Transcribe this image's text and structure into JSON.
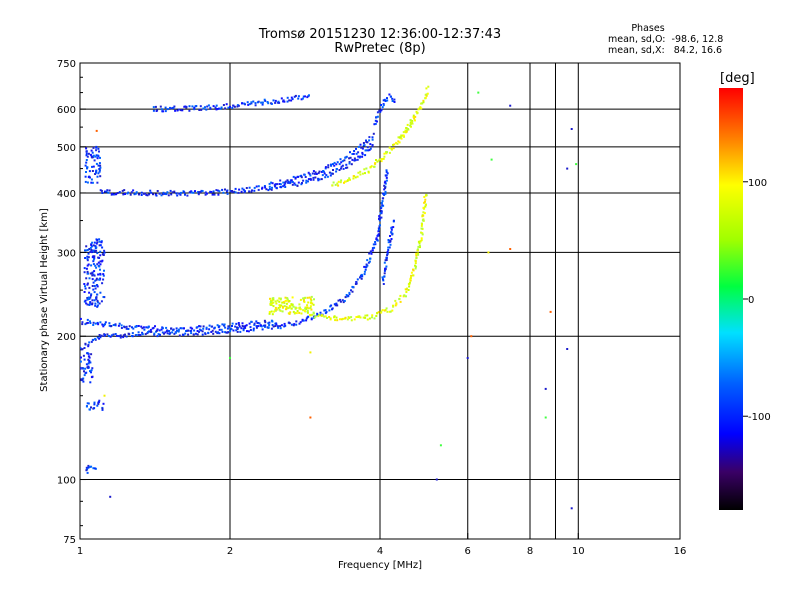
{
  "chart_data": {
    "type": "scatter",
    "title": "Tromsø 20151230 12:36:00-12:37:43",
    "subtitle": "RwPretec (8p)",
    "xlabel": "Frequency [MHz]",
    "ylabel": "Stationary phase Virtual Height [km]",
    "x_scale": "log",
    "y_scale": "log",
    "xlim": [
      1,
      16
    ],
    "ylim": [
      75,
      750
    ],
    "x_ticks": [
      {
        "v": 1,
        "label": "1"
      },
      {
        "v": 2,
        "label": "2"
      },
      {
        "v": 4,
        "label": "4"
      },
      {
        "v": 6,
        "label": "6"
      },
      {
        "v": 8,
        "label": "8"
      },
      {
        "v": 10,
        "label": "10"
      },
      {
        "v": 16,
        "label": "16"
      }
    ],
    "x_grid": [
      2,
      4,
      6,
      8,
      9,
      10
    ],
    "y_ticks": [
      {
        "v": 75,
        "label": "75"
      },
      {
        "v": 100,
        "label": "100"
      },
      {
        "v": 200,
        "label": "200"
      },
      {
        "v": 300,
        "label": "300"
      },
      {
        "v": 400,
        "label": "400"
      },
      {
        "v": 500,
        "label": "500"
      },
      {
        "v": 600,
        "label": "600"
      },
      {
        "v": 750,
        "label": "750"
      }
    ],
    "y_grid": [
      100,
      200,
      300,
      400,
      500,
      600
    ],
    "grid": true,
    "legend": {
      "title": "Phases",
      "line1": "mean, sd,O:  -98.6, 12.8",
      "line2": "mean, sd,X:   84.2, 16.6"
    },
    "colorbar": {
      "label": "[deg]",
      "range": [
        -180,
        180
      ],
      "ticks": [
        {
          "v": 100,
          "label": "100"
        },
        {
          "v": 0,
          "label": "0"
        },
        {
          "v": -100,
          "label": "-100"
        }
      ]
    },
    "series": [
      {
        "name": "O",
        "phase": -98.6,
        "traces": [
          {
            "f": [
              1.0,
              1.1,
              1.3,
              1.6,
              1.9,
              2.1,
              2.5,
              2.8,
              3.1,
              3.4,
              3.7,
              3.95,
              4.05,
              4.15
            ],
            "h": [
              188,
              200,
              202,
              203,
              204,
              206,
              210,
              215,
              225,
              240,
              270,
              320,
              380,
              450
            ]
          },
          {
            "f": [
              1.0,
              1.2,
              1.5,
              1.8,
              2.0,
              2.2,
              2.5
            ],
            "h": [
              215,
              210,
              207,
              208,
              210,
              212,
              214
            ]
          },
          {
            "f": [
              1.1,
              1.3,
              1.6,
              1.9,
              2.1,
              2.4,
              2.8,
              3.2,
              3.6,
              3.9
            ],
            "h": [
              402,
              400,
              399,
              401,
              405,
              410,
              420,
              440,
              470,
              510
            ]
          },
          {
            "f": [
              2.4,
              2.8,
              3.2,
              3.6,
              3.9
            ],
            "h": [
              415,
              432,
              455,
              490,
              530
            ]
          },
          {
            "f": [
              1.4,
              1.6,
              1.8,
              2.0,
              2.2,
              2.5,
              2.9
            ],
            "h": [
              600,
              601,
              604,
              610,
              616,
              625,
              640
            ]
          },
          {
            "f": [
              3.9,
              4.0,
              4.1,
              4.2,
              4.3
            ],
            "h": [
              560,
              600,
              630,
              640,
              620
            ]
          },
          {
            "f": [
              4.05,
              4.15,
              4.25
            ],
            "h": [
              260,
              300,
              350
            ]
          }
        ],
        "clusters": [
          {
            "f": [
              1.02,
              1.12
            ],
            "h": [
              230,
              320
            ]
          },
          {
            "f": [
              1.03,
              1.12
            ],
            "h": [
              140,
              147
            ]
          },
          {
            "f": [
              1.03,
              1.08
            ],
            "h": [
              103,
              108
            ]
          },
          {
            "f": [
              1.02,
              1.1
            ],
            "h": [
              420,
              500
            ]
          },
          {
            "f": [
              1.0,
              1.06
            ],
            "h": [
              160,
              185
            ]
          }
        ],
        "points": [
          {
            "f": 5.2,
            "h": 100
          },
          {
            "f": 6.0,
            "h": 180
          },
          {
            "f": 7.3,
            "h": 610
          },
          {
            "f": 8.6,
            "h": 155
          },
          {
            "f": 9.5,
            "h": 188
          },
          {
            "f": 9.7,
            "h": 545
          },
          {
            "f": 9.5,
            "h": 450
          },
          {
            "f": 9.7,
            "h": 87
          },
          {
            "f": 1.15,
            "h": 92
          }
        ]
      },
      {
        "name": "X",
        "phase": 84.2,
        "traces": [
          {
            "f": [
              2.4,
              2.7,
              3.0,
              3.3,
              3.6,
              3.9,
              4.2,
              4.5,
              4.7,
              4.85,
              4.95
            ],
            "h": [
              240,
              228,
              220,
              218,
              218,
              220,
              228,
              245,
              280,
              330,
              400
            ]
          },
          {
            "f": [
              3.2,
              3.5,
              3.8,
              4.1,
              4.4,
              4.7
            ],
            "h": [
              415,
              430,
              448,
              480,
              520,
              570
            ]
          },
          {
            "f": [
              4.4,
              4.6,
              4.8,
              4.95,
              5.0
            ],
            "h": [
              520,
              560,
              600,
              640,
              665
            ]
          }
        ],
        "clusters": [
          {
            "f": [
              2.4,
              2.95
            ],
            "h": [
              222,
              242
            ]
          }
        ],
        "points": [
          {
            "f": 1.08,
            "h": 540
          },
          {
            "f": 1.12,
            "h": 150
          },
          {
            "f": 2.0,
            "h": 180
          },
          {
            "f": 2.9,
            "h": 135
          },
          {
            "f": 2.9,
            "h": 185
          },
          {
            "f": 5.3,
            "h": 118
          },
          {
            "f": 6.3,
            "h": 650
          },
          {
            "f": 6.6,
            "h": 300
          },
          {
            "f": 6.7,
            "h": 470
          },
          {
            "f": 7.3,
            "h": 305
          },
          {
            "f": 8.6,
            "h": 135
          },
          {
            "f": 8.8,
            "h": 225
          },
          {
            "f": 9.9,
            "h": 460
          },
          {
            "f": 6.1,
            "h": 200
          }
        ]
      }
    ]
  }
}
